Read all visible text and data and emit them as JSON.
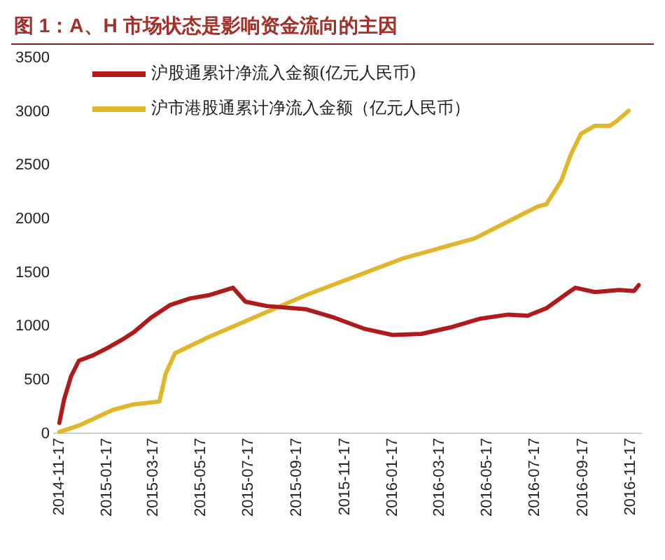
{
  "chart_data": {
    "type": "line",
    "title": "图 1：A、H 市场状态是影响资金流向的主因",
    "legend": "top left",
    "grid": false,
    "marker": "none",
    "line_style": "solid",
    "xlim": [
      "2014-11-10",
      "2016-11-30"
    ],
    "xticks": [
      "2014-11-17",
      "2015-01-17",
      "2015-03-17",
      "2015-05-17",
      "2015-07-17",
      "2015-09-17",
      "2015-11-17",
      "2016-01-17",
      "2016-03-17",
      "2016-05-17",
      "2016-07-17",
      "2016-09-17",
      "2016-11-17"
    ],
    "ylim": [
      0,
      3500
    ],
    "yticks": [
      0,
      500,
      1000,
      1500,
      2000,
      2500,
      3000,
      3500
    ],
    "series": [
      {
        "name": "沪股通累计净流入金额(亿元人民币)",
        "color": "#b01a1a",
        "x": [
          "2014-11-17",
          "2014-11-23",
          "2014-12-02",
          "2014-12-12",
          "2014-12-30",
          "2015-01-18",
          "2015-02-05",
          "2015-02-21",
          "2015-03-14",
          "2015-04-08",
          "2015-05-03",
          "2015-05-27",
          "2015-06-27",
          "2015-07-13",
          "2015-08-09",
          "2015-09-28",
          "2015-11-04",
          "2015-12-11",
          "2016-01-17",
          "2016-02-23",
          "2016-03-31",
          "2016-05-07",
          "2016-06-13",
          "2016-07-08",
          "2016-08-01",
          "2016-08-26",
          "2016-09-07",
          "2016-10-02",
          "2016-11-02",
          "2016-11-21",
          "2016-11-27"
        ],
        "values": [
          100,
          315,
          535,
          680,
          730,
          800,
          875,
          950,
          1080,
          1200,
          1260,
          1290,
          1360,
          1230,
          1190,
          1160,
          1080,
          980,
          920,
          930,
          990,
          1070,
          1110,
          1100,
          1170,
          1300,
          1360,
          1320,
          1340,
          1330,
          1385
        ]
      },
      {
        "name": "沪市港股通累计净流入金额（亿元人民币）",
        "color": "#e0b62a",
        "x": [
          "2014-11-17",
          "2014-12-12",
          "2015-01-24",
          "2015-02-18",
          "2015-03-14",
          "2015-03-25",
          "2015-04-02",
          "2015-04-14",
          "2015-05-27",
          "2015-09-28",
          "2016-01-29",
          "2016-05-01",
          "2016-06-19",
          "2016-07-20",
          "2016-08-01",
          "2016-08-20",
          "2016-09-01",
          "2016-09-14",
          "2016-10-02",
          "2016-10-21",
          "2016-10-30",
          "2016-11-14"
        ],
        "values": [
          15,
          75,
          220,
          270,
          290,
          300,
          560,
          750,
          900,
          1290,
          1630,
          1820,
          2000,
          2115,
          2140,
          2360,
          2600,
          2795,
          2870,
          2870,
          2915,
          3010
        ]
      }
    ]
  }
}
